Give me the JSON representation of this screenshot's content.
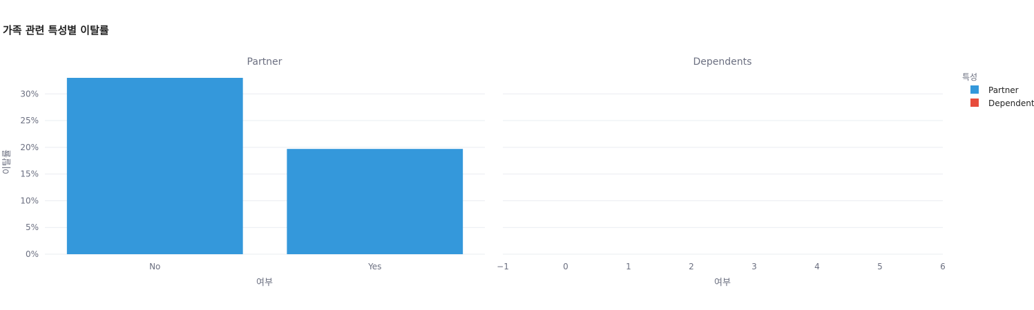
{
  "chart_data": {
    "type": "bar",
    "title": "가족 관련 특성별 이탈률",
    "ylabel": "이탈률",
    "legend": {
      "title": "특성",
      "placement": "top-right",
      "entries": [
        {
          "name": "Partner",
          "color": "#3498db"
        },
        {
          "name": "Dependents",
          "color": "#e74c3c"
        }
      ]
    },
    "yticks": [
      "0%",
      "5%",
      "10%",
      "15%",
      "20%",
      "25%",
      "30%"
    ],
    "ylim": [
      0,
      0.33
    ],
    "grid": true,
    "subplots": [
      {
        "subtitle": "Partner",
        "xlabel": "여부",
        "categories": [
          "No",
          "Yes"
        ],
        "series": [
          {
            "name": "Partner",
            "values": [
              0.33,
              0.197
            ]
          }
        ]
      },
      {
        "subtitle": "Dependents",
        "xlabel": "여부",
        "xticks": [
          "−1",
          "0",
          "1",
          "2",
          "3",
          "4",
          "5",
          "6"
        ],
        "xlim": [
          -1,
          6
        ],
        "series": [
          {
            "name": "Dependents",
            "values": []
          }
        ]
      }
    ]
  }
}
